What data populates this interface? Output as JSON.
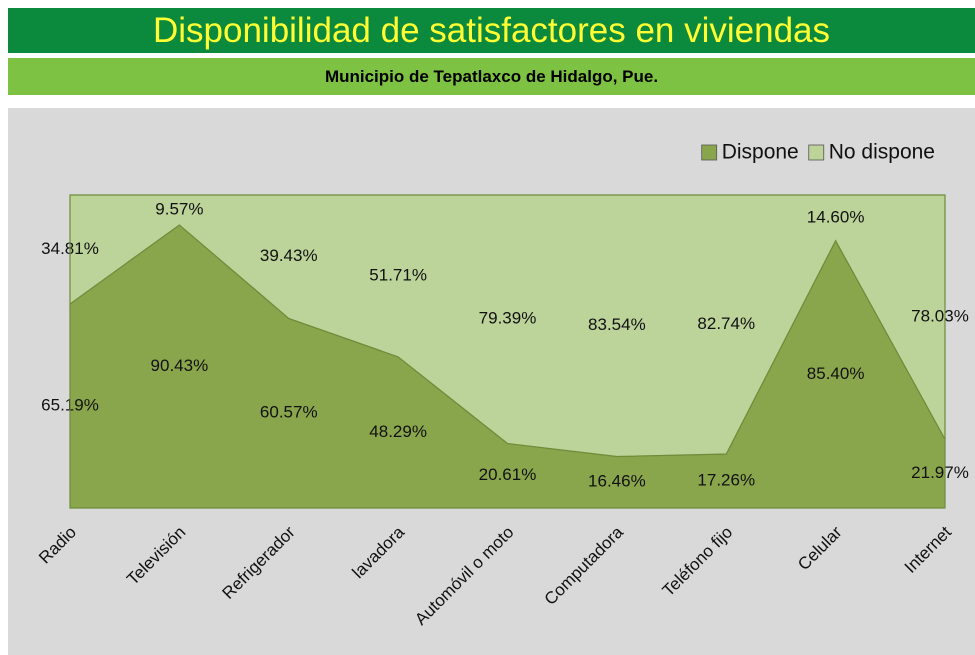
{
  "chart_data": {
    "type": "area",
    "stacked": true,
    "title": "Disponibilidad de satisfactores en viviendas",
    "subtitle": "Municipio de Tepatlaxco de Hidalgo, Pue.",
    "categories": [
      "Radio",
      "Televisión",
      "Refrigerador",
      "lavadora",
      "Automóvil o moto",
      "Computadora",
      "Teléfono fijo",
      "Celular",
      "Internet"
    ],
    "ylim": [
      0,
      100
    ],
    "legend": "top-right",
    "series": [
      {
        "name": "Dispone",
        "color": "#8aa64c",
        "values": [
          65.19,
          90.43,
          60.57,
          48.29,
          20.61,
          16.46,
          17.26,
          85.4,
          21.97
        ],
        "value_labels": [
          "65.19%",
          "90.43%",
          "60.57%",
          "48.29%",
          "20.61%",
          "16.46%",
          "17.26%",
          "85.40%",
          "21.97%"
        ]
      },
      {
        "name": "No dispone",
        "color": "#bcd39a",
        "values": [
          34.81,
          9.57,
          39.43,
          51.71,
          79.39,
          83.54,
          82.74,
          14.6,
          78.03
        ],
        "value_labels": [
          "34.81%",
          "9.57%",
          "39.43%",
          "51.71%",
          "79.39%",
          "83.54%",
          "82.74%",
          "14.60%",
          "78.03%"
        ]
      }
    ]
  }
}
